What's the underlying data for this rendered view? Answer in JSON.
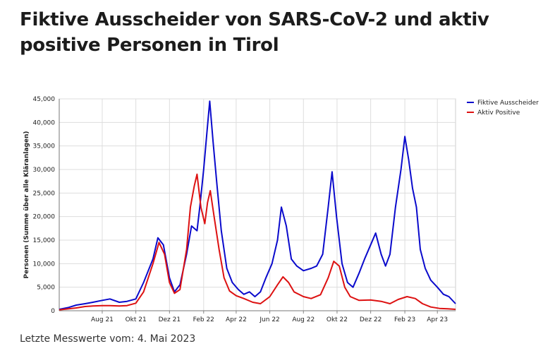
{
  "header": {
    "title": "Fiktive Ausscheider von SARS-CoV-2 und aktiv positive Personen in Tirol"
  },
  "footer": {
    "text": "Letzte Messwerte vom: 4. Mai 2023"
  },
  "chart_data": {
    "type": "line",
    "title": "",
    "xlabel": "",
    "ylabel": "Personen (Summe über alle Kläranlagen)",
    "ylim": [
      0,
      45000
    ],
    "yticks": [
      0,
      5000,
      10000,
      15000,
      20000,
      25000,
      30000,
      35000,
      40000,
      45000
    ],
    "ytick_labels": [
      "0",
      "5,000",
      "10,000",
      "15,000",
      "20,000",
      "25,000",
      "30,000",
      "35,000",
      "40,000",
      "45,000"
    ],
    "xlim": [
      "2021-05-15",
      "2023-05-04"
    ],
    "xticks": [
      {
        "date": "2021-08-01",
        "label": "Aug 21"
      },
      {
        "date": "2021-10-01",
        "label": "Okt 21"
      },
      {
        "date": "2021-12-01",
        "label": "Dez 21"
      },
      {
        "date": "2022-02-01",
        "label": "Feb 22"
      },
      {
        "date": "2022-04-01",
        "label": "Apr 22"
      },
      {
        "date": "2022-06-01",
        "label": "Jun 22"
      },
      {
        "date": "2022-08-01",
        "label": "Aug 22"
      },
      {
        "date": "2022-10-01",
        "label": "Okt 22"
      },
      {
        "date": "2022-12-01",
        "label": "Dez 22"
      },
      {
        "date": "2023-02-01",
        "label": "Feb 23"
      },
      {
        "date": "2023-04-01",
        "label": "Apr 23"
      }
    ],
    "grid": true,
    "legend_position": "top-right",
    "series": [
      {
        "name": "Fiktive Ausscheider",
        "color": "#0a0acc",
        "points": [
          [
            "2021-05-15",
            300
          ],
          [
            "2021-06-01",
            700
          ],
          [
            "2021-06-15",
            1200
          ],
          [
            "2021-07-01",
            1500
          ],
          [
            "2021-07-15",
            1800
          ],
          [
            "2021-08-01",
            2200
          ],
          [
            "2021-08-15",
            2500
          ],
          [
            "2021-09-01",
            1800
          ],
          [
            "2021-09-15",
            2000
          ],
          [
            "2021-10-01",
            2500
          ],
          [
            "2021-10-15",
            6000
          ],
          [
            "2021-11-01",
            11000
          ],
          [
            "2021-11-10",
            15500
          ],
          [
            "2021-11-20",
            14000
          ],
          [
            "2021-12-01",
            7000
          ],
          [
            "2021-12-10",
            4000
          ],
          [
            "2021-12-20",
            5500
          ],
          [
            "2022-01-01",
            12000
          ],
          [
            "2022-01-10",
            18000
          ],
          [
            "2022-01-20",
            17000
          ],
          [
            "2022-01-25",
            22000
          ],
          [
            "2022-02-01",
            30000
          ],
          [
            "2022-02-07",
            38000
          ],
          [
            "2022-02-12",
            44500
          ],
          [
            "2022-02-18",
            36000
          ],
          [
            "2022-02-25",
            27000
          ],
          [
            "2022-03-05",
            17000
          ],
          [
            "2022-03-15",
            9000
          ],
          [
            "2022-03-25",
            6000
          ],
          [
            "2022-04-05",
            4500
          ],
          [
            "2022-04-15",
            3500
          ],
          [
            "2022-04-25",
            4000
          ],
          [
            "2022-05-05",
            3000
          ],
          [
            "2022-05-15",
            4000
          ],
          [
            "2022-05-25",
            7000
          ],
          [
            "2022-06-05",
            10000
          ],
          [
            "2022-06-15",
            15000
          ],
          [
            "2022-06-22",
            22000
          ],
          [
            "2022-07-01",
            18000
          ],
          [
            "2022-07-10",
            11000
          ],
          [
            "2022-07-20",
            9500
          ],
          [
            "2022-08-01",
            8500
          ],
          [
            "2022-08-15",
            9000
          ],
          [
            "2022-08-25",
            9500
          ],
          [
            "2022-09-05",
            12000
          ],
          [
            "2022-09-15",
            22000
          ],
          [
            "2022-09-22",
            29500
          ],
          [
            "2022-09-30",
            20000
          ],
          [
            "2022-10-10",
            10000
          ],
          [
            "2022-10-20",
            6000
          ],
          [
            "2022-10-30",
            5000
          ],
          [
            "2022-11-10",
            8000
          ],
          [
            "2022-11-20",
            11000
          ],
          [
            "2022-12-01",
            14000
          ],
          [
            "2022-12-10",
            16500
          ],
          [
            "2022-12-20",
            12000
          ],
          [
            "2022-12-28",
            9500
          ],
          [
            "2023-01-05",
            12000
          ],
          [
            "2023-01-15",
            22000
          ],
          [
            "2023-01-25",
            30000
          ],
          [
            "2023-02-01",
            37000
          ],
          [
            "2023-02-08",
            32000
          ],
          [
            "2023-02-15",
            26000
          ],
          [
            "2023-02-22",
            22000
          ],
          [
            "2023-03-01",
            13000
          ],
          [
            "2023-03-10",
            9000
          ],
          [
            "2023-03-20",
            6500
          ],
          [
            "2023-04-01",
            5000
          ],
          [
            "2023-04-12",
            3500
          ],
          [
            "2023-04-22",
            3000
          ],
          [
            "2023-05-04",
            1500
          ]
        ]
      },
      {
        "name": "Aktiv Positive",
        "color": "#dd1111",
        "points": [
          [
            "2021-05-15",
            200
          ],
          [
            "2021-06-01",
            400
          ],
          [
            "2021-06-15",
            600
          ],
          [
            "2021-07-01",
            900
          ],
          [
            "2021-07-15",
            1000
          ],
          [
            "2021-08-01",
            1100
          ],
          [
            "2021-08-15",
            1100
          ],
          [
            "2021-09-01",
            1000
          ],
          [
            "2021-09-15",
            1100
          ],
          [
            "2021-10-01",
            1600
          ],
          [
            "2021-10-15",
            4000
          ],
          [
            "2021-11-01",
            10000
          ],
          [
            "2021-11-12",
            14500
          ],
          [
            "2021-11-22",
            12000
          ],
          [
            "2021-12-01",
            6000
          ],
          [
            "2021-12-10",
            3700
          ],
          [
            "2021-12-20",
            4500
          ],
          [
            "2022-01-01",
            13000
          ],
          [
            "2022-01-08",
            22000
          ],
          [
            "2022-01-15",
            26500
          ],
          [
            "2022-01-20",
            29000
          ],
          [
            "2022-01-27",
            22000
          ],
          [
            "2022-02-03",
            18500
          ],
          [
            "2022-02-08",
            23000
          ],
          [
            "2022-02-13",
            25500
          ],
          [
            "2022-02-20",
            20000
          ],
          [
            "2022-03-01",
            13000
          ],
          [
            "2022-03-10",
            7000
          ],
          [
            "2022-03-20",
            4200
          ],
          [
            "2022-04-01",
            3200
          ],
          [
            "2022-04-15",
            2600
          ],
          [
            "2022-05-01",
            1800
          ],
          [
            "2022-05-15",
            1500
          ],
          [
            "2022-06-01",
            3000
          ],
          [
            "2022-06-15",
            5500
          ],
          [
            "2022-06-25",
            7200
          ],
          [
            "2022-07-05",
            6000
          ],
          [
            "2022-07-15",
            4000
          ],
          [
            "2022-08-01",
            3000
          ],
          [
            "2022-08-15",
            2600
          ],
          [
            "2022-09-01",
            3400
          ],
          [
            "2022-09-15",
            7000
          ],
          [
            "2022-09-25",
            10500
          ],
          [
            "2022-10-05",
            9500
          ],
          [
            "2022-10-15",
            5000
          ],
          [
            "2022-10-25",
            3000
          ],
          [
            "2022-11-10",
            2200
          ],
          [
            "2022-12-01",
            2300
          ],
          [
            "2022-12-20",
            2000
          ],
          [
            "2023-01-05",
            1500
          ],
          [
            "2023-01-20",
            2400
          ],
          [
            "2023-02-05",
            3000
          ],
          [
            "2023-02-20",
            2600
          ],
          [
            "2023-03-05",
            1500
          ],
          [
            "2023-03-20",
            800
          ],
          [
            "2023-04-05",
            500
          ],
          [
            "2023-04-20",
            400
          ],
          [
            "2023-05-04",
            300
          ]
        ]
      }
    ]
  }
}
